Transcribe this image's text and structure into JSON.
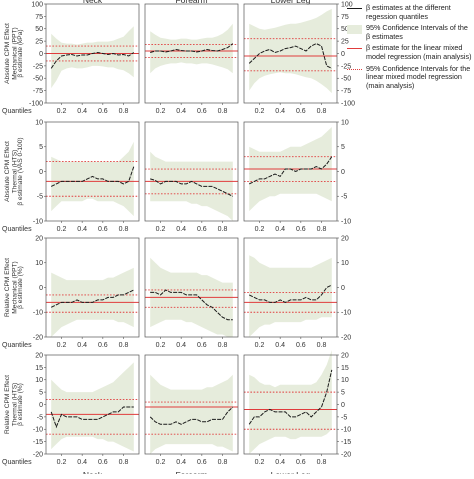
{
  "chart_data": {
    "type": "line",
    "columns": [
      "Neck",
      "Forearm",
      "Lower Leg"
    ],
    "x_tick_labels": [
      "0.2",
      "0.4",
      "0.6",
      "0.8"
    ],
    "quantiles_label": "Quantiles",
    "quantiles": [
      0.1,
      0.15,
      0.2,
      0.25,
      0.3,
      0.35,
      0.4,
      0.45,
      0.5,
      0.55,
      0.6,
      0.65,
      0.7,
      0.75,
      0.8,
      0.85,
      0.9
    ],
    "xlim": [
      0.05,
      0.95
    ],
    "legend": {
      "beta_quantiles": "β estimates at the different regession quantiles",
      "ci_quantiles": "95% Confidence Intervals of the β estimates",
      "lmm_estimate": "β estimate for the linear mixed model regression (main analysis)",
      "lmm_ci": "95% Confidence Intervals for the linear mixed model regression (main analysis)"
    },
    "colors": {
      "line": "#1a1a1a",
      "band": "#e6ecdc",
      "lmm": "#e03c3c",
      "frame": "#555555"
    },
    "rows": [
      {
        "row_label": "Absolute CPM Effect Mechanical (PPT)",
        "ylabel": "β estimate (kPa)",
        "ylim": [
          -100,
          100
        ],
        "yticks": [
          -100,
          -75,
          -50,
          -25,
          0,
          25,
          50,
          75,
          100
        ],
        "panels": [
          {
            "beta": [
              -30,
              -15,
              -5,
              -3,
              -2,
              -5,
              -3,
              -3,
              0,
              2,
              0,
              -2,
              0,
              -3,
              -2,
              -5,
              2
            ],
            "ci_low": [
              -70,
              -55,
              -35,
              -30,
              -28,
              -30,
              -30,
              -28,
              -25,
              -25,
              -26,
              -28,
              -28,
              -32,
              -34,
              -40,
              -48
            ],
            "ci_high": [
              40,
              30,
              22,
              20,
              20,
              18,
              20,
              22,
              22,
              24,
              24,
              24,
              26,
              30,
              34,
              45,
              55
            ],
            "lmm": 0,
            "lmm_ci": [
              -15,
              15
            ]
          },
          {
            "beta": [
              2,
              5,
              5,
              3,
              5,
              8,
              6,
              5,
              5,
              3,
              5,
              8,
              6,
              5,
              8,
              12,
              20
            ],
            "ci_low": [
              -40,
              -30,
              -25,
              -22,
              -20,
              -20,
              -18,
              -20,
              -20,
              -22,
              -20,
              -20,
              -22,
              -25,
              -28,
              -32,
              -40
            ],
            "ci_high": [
              45,
              38,
              32,
              30,
              28,
              28,
              30,
              30,
              28,
              28,
              30,
              32,
              32,
              35,
              40,
              48,
              60
            ],
            "lmm": 5,
            "lmm_ci": [
              -8,
              18
            ]
          },
          {
            "beta": [
              -20,
              -10,
              0,
              5,
              8,
              2,
              5,
              10,
              12,
              15,
              10,
              5,
              15,
              20,
              15,
              -25,
              -30
            ],
            "ci_low": [
              -75,
              -60,
              -50,
              -45,
              -42,
              -40,
              -38,
              -40,
              -40,
              -42,
              -45,
              -48,
              -50,
              -55,
              -62,
              -70,
              -80
            ],
            "ci_high": [
              60,
              55,
              50,
              48,
              50,
              52,
              55,
              58,
              60,
              60,
              62,
              65,
              68,
              72,
              78,
              85,
              90
            ],
            "lmm": -5,
            "lmm_ci": [
              -35,
              30
            ]
          }
        ]
      },
      {
        "row_label": "Absolute CPM Effect Thermal (HTS)",
        "ylabel": "β estimate (VAS 0-100)",
        "ylim": [
          -10,
          10
        ],
        "yticks": [
          -10,
          -5,
          0,
          5,
          10
        ],
        "panels": [
          {
            "beta": [
              -3,
              -2.5,
              -2,
              -2,
              -2,
              -2,
              -2,
              -1.5,
              -1,
              -1.5,
              -1.5,
              -2,
              -2,
              -2,
              -2.5,
              -2,
              1
            ],
            "ci_low": [
              -8,
              -7,
              -6,
              -6,
              -6,
              -6,
              -6,
              -5.5,
              -5.5,
              -6,
              -6,
              -6,
              -6,
              -6.5,
              -7,
              -8,
              -9
            ],
            "ci_high": [
              3,
              2.5,
              2,
              2,
              2,
              2,
              2,
              2,
              2,
              2,
              2,
              2,
              2,
              2,
              3,
              4,
              6
            ],
            "lmm": -2,
            "lmm_ci": [
              -5,
              2
            ]
          },
          {
            "beta": [
              -1.5,
              -1.8,
              -2.5,
              -2,
              -2,
              -2,
              -2.5,
              -2.5,
              -2,
              -2.5,
              -3,
              -3,
              -3,
              -3.5,
              -4,
              -4.5,
              -5
            ],
            "ci_low": [
              -6,
              -6,
              -6,
              -6,
              -6,
              -6,
              -6,
              -6,
              -6.5,
              -6.5,
              -7,
              -7,
              -7.5,
              -8,
              -8.5,
              -9,
              -10
            ],
            "ci_high": [
              4,
              3,
              2.5,
              2,
              2,
              2,
              2,
              2,
              2,
              2,
              2,
              2,
              2,
              2,
              2,
              2,
              2
            ],
            "lmm": -2,
            "lmm_ci": [
              -4.5,
              0.5
            ]
          },
          {
            "beta": [
              -2.5,
              -2,
              -1.5,
              -1.5,
              -1,
              -0.5,
              -1,
              0.5,
              0.5,
              0,
              0.5,
              0.5,
              0.5,
              1,
              0.5,
              1.5,
              3
            ],
            "ci_low": [
              -8,
              -7,
              -6,
              -5.5,
              -5,
              -5,
              -4.5,
              -4.5,
              -4.5,
              -4.5,
              -4.5,
              -4.5,
              -4.5,
              -4.5,
              -5,
              -5.5,
              -6
            ],
            "ci_high": [
              5,
              4.5,
              4,
              4,
              4,
              4,
              4,
              4.5,
              5,
              5,
              5,
              5.5,
              6,
              6.5,
              7,
              8,
              9
            ],
            "lmm": 0.5,
            "lmm_ci": [
              -2,
              3
            ]
          }
        ]
      },
      {
        "row_label": "Relative CPM Effect Mechanical (PPT)",
        "ylabel": "β estimate (%)",
        "ylim": [
          -20,
          20
        ],
        "yticks": [
          -20,
          -10,
          0,
          10,
          20
        ],
        "panels": [
          {
            "beta": [
              -8,
              -7,
              -6,
              -6,
              -6,
              -5,
              -6,
              -6,
              -6,
              -5,
              -5,
              -4,
              -4,
              -3,
              -3,
              -2,
              -1
            ],
            "ci_low": [
              -20,
              -18,
              -16,
              -15,
              -14,
              -13,
              -13,
              -13,
              -13,
              -13,
              -13,
              -13,
              -13,
              -14,
              -14,
              -15,
              -16
            ],
            "ci_high": [
              6,
              5,
              4,
              3,
              3,
              3,
              3,
              3,
              3,
              3,
              3,
              4,
              4,
              5,
              6,
              7,
              8
            ],
            "lmm": -6,
            "lmm_ci": [
              -10,
              -3
            ]
          },
          {
            "beta": [
              -2,
              -2,
              -3,
              -1,
              -2,
              -2,
              -2,
              -3,
              -3,
              -3,
              -5,
              -7,
              -8,
              -10,
              -12,
              -13,
              -13
            ],
            "ci_low": [
              -16,
              -15,
              -14,
              -13,
              -13,
              -13,
              -13,
              -14,
              -14,
              -15,
              -16,
              -17,
              -18,
              -19,
              -19,
              -20,
              -20
            ],
            "ci_high": [
              12,
              10,
              8,
              7,
              6,
              6,
              6,
              6,
              6,
              6,
              5,
              5,
              4,
              3,
              2,
              2,
              2
            ],
            "lmm": -4,
            "lmm_ci": [
              -8,
              -1
            ]
          },
          {
            "beta": [
              -3,
              -4,
              -5,
              -5,
              -6,
              -6,
              -5,
              -6,
              -5,
              -5,
              -5,
              -4,
              -5,
              -5,
              -3,
              0,
              1
            ],
            "ci_low": [
              -20,
              -18,
              -16,
              -15,
              -15,
              -14,
              -14,
              -14,
              -14,
              -14,
              -14,
              -13,
              -13,
              -13,
              -12,
              -12,
              -12
            ],
            "ci_high": [
              13,
              12,
              10,
              9,
              8,
              8,
              8,
              8,
              8,
              8,
              8,
              8,
              8,
              9,
              10,
              11,
              12
            ],
            "lmm": -6,
            "lmm_ci": [
              -10,
              -2
            ]
          }
        ]
      },
      {
        "row_label": "Relative CPM Effect Thermal (HTS)",
        "ylabel": "β estimate (%)",
        "ylim": [
          -20,
          20
        ],
        "yticks": [
          -20,
          -15,
          -10,
          -5,
          0,
          5,
          10,
          15,
          20
        ],
        "panels": [
          {
            "beta": [
              -3,
              -9,
              -4,
              -5,
              -5,
              -5,
              -6,
              -6,
              -6,
              -6,
              -5,
              -4,
              -3,
              -3,
              -1,
              -1,
              -1
            ],
            "ci_low": [
              -18,
              -16,
              -14,
              -13,
              -13,
              -13,
              -13,
              -13,
              -13,
              -14,
              -14,
              -15,
              -15,
              -16,
              -17,
              -18,
              -19
            ],
            "ci_high": [
              10,
              8,
              6,
              5,
              5,
              5,
              5,
              5,
              5,
              6,
              7,
              8,
              9,
              11,
              13,
              15,
              17
            ],
            "lmm": -4,
            "lmm_ci": [
              -12,
              2
            ]
          },
          {
            "beta": [
              -5,
              -7,
              -8,
              -8,
              -8,
              -7,
              -8,
              -7,
              -6,
              -6,
              -7,
              -7,
              -6,
              -6,
              -6,
              -3,
              -1
            ],
            "ci_low": [
              -20,
              -18,
              -17,
              -16,
              -16,
              -16,
              -16,
              -16,
              -16,
              -16,
              -16,
              -16,
              -16,
              -17,
              -17,
              -18,
              -19
            ],
            "ci_high": [
              12,
              10,
              8,
              7,
              6,
              6,
              6,
              6,
              6,
              6,
              6,
              7,
              7,
              8,
              9,
              10,
              12
            ],
            "lmm": -1,
            "lmm_ci": [
              -12,
              1
            ]
          },
          {
            "beta": [
              -8,
              -5,
              -5,
              -3,
              -2,
              -3,
              -3,
              -3,
              -5,
              -5,
              -4,
              -3,
              -5,
              -3,
              -1,
              5,
              14
            ],
            "ci_low": [
              -20,
              -18,
              -16,
              -15,
              -14,
              -13,
              -13,
              -13,
              -14,
              -14,
              -13,
              -13,
              -13,
              -13,
              -13,
              -12,
              -10
            ],
            "ci_high": [
              12,
              11,
              9,
              8,
              8,
              7,
              8,
              8,
              8,
              8,
              8,
              8,
              8,
              9,
              12,
              16,
              22
            ],
            "lmm": -2,
            "lmm_ci": [
              -10,
              5
            ]
          }
        ]
      }
    ]
  }
}
